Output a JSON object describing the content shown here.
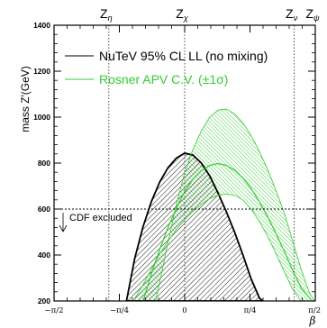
{
  "chart_data": {
    "type": "line",
    "xlabel": "β",
    "ylabel": "mass Z′(GeV)",
    "xlim": [
      -1.5708,
      1.5708
    ],
    "ylim": [
      200,
      1400
    ],
    "x_tick_labels": [
      {
        "value": -1.5708,
        "label": "−π/2"
      },
      {
        "value": -0.7854,
        "label": "−π/4"
      },
      {
        "value": 0,
        "label": "0"
      },
      {
        "value": 0.7854,
        "label": "π/4"
      },
      {
        "value": 1.5708,
        "label": "π/2"
      }
    ],
    "y_ticks": [
      200,
      400,
      600,
      800,
      1000,
      1200,
      1400
    ],
    "models": [
      {
        "label": "Z",
        "sub": "η",
        "beta": -0.9117
      },
      {
        "label": "Z",
        "sub": "χ",
        "beta": 0
      },
      {
        "label": "Z",
        "sub": "ν",
        "beta": 1.3181
      },
      {
        "label": "Z",
        "sub": "ψ",
        "beta": 1.5708
      }
    ],
    "legend": {
      "placement": "top-right",
      "entries": [
        {
          "label": "NuTeV 95% CL LL (no mixing)",
          "color": "#000000"
        },
        {
          "label": "Rosner APV C.V. (±1σ)",
          "color": "#33cc33"
        }
      ]
    },
    "cdf_limit": {
      "value": 600,
      "label": "CDF excluded"
    },
    "series": [
      {
        "name": "NuTeV 95% CL LL (no mixing)",
        "color": "#000000",
        "x": [
          -0.7,
          -0.6,
          -0.5,
          -0.4,
          -0.3,
          -0.2,
          -0.1,
          0.0,
          0.1,
          0.2,
          0.3,
          0.4,
          0.5,
          0.6,
          0.7,
          0.8,
          0.9,
          0.94
        ],
        "y": [
          200,
          386,
          523,
          633,
          718,
          780,
          822,
          843,
          835,
          800,
          745,
          671,
          589,
          500,
          401,
          296,
          212,
          200
        ]
      },
      {
        "name": "Rosner APV C.V.",
        "color": "#33cc33",
        "x": [
          -0.5,
          -0.4,
          -0.3,
          -0.2,
          -0.1,
          0.0,
          0.1,
          0.2,
          0.3,
          0.4,
          0.5,
          0.6,
          0.7,
          0.8,
          0.9,
          1.0,
          1.1,
          1.2,
          1.3,
          1.4,
          1.52
        ],
        "y": [
          200,
          318,
          425,
          520,
          604,
          676,
          730,
          767,
          790,
          798,
          790,
          769,
          735,
          690,
          630,
          565,
          492,
          415,
          332,
          258,
          205
        ]
      },
      {
        "name": "Rosner APV +1σ",
        "color": "#33cc33",
        "x": [
          -0.35,
          -0.3,
          -0.2,
          -0.1,
          0.0,
          0.1,
          0.2,
          0.3,
          0.4,
          0.5,
          0.6,
          0.7,
          0.8,
          0.9,
          1.0,
          1.1,
          1.2,
          1.3,
          1.4,
          1.5,
          1.56
        ],
        "y": [
          200,
          280,
          455,
          620,
          760,
          860,
          940,
          1000,
          1030,
          1035,
          1015,
          975,
          920,
          850,
          770,
          680,
          580,
          460,
          340,
          235,
          200
        ]
      },
      {
        "name": "Rosner APV −1σ",
        "color": "#33cc33",
        "x": [
          -0.62,
          -0.5,
          -0.4,
          -0.3,
          -0.2,
          -0.1,
          0.0,
          0.1,
          0.2,
          0.3,
          0.4,
          0.5,
          0.6,
          0.7,
          0.8,
          0.9,
          1.0,
          1.1,
          1.2,
          1.3,
          1.4
        ],
        "y": [
          200,
          270,
          340,
          405,
          460,
          510,
          553,
          590,
          620,
          645,
          660,
          665,
          660,
          640,
          600,
          545,
          480,
          405,
          325,
          250,
          200
        ]
      }
    ]
  }
}
